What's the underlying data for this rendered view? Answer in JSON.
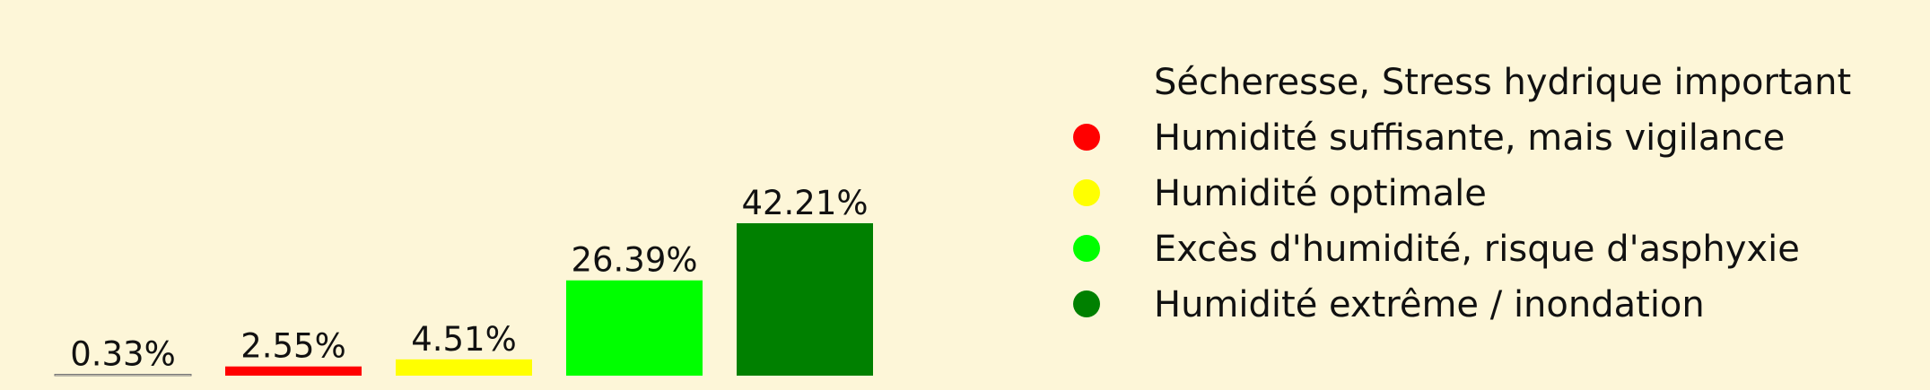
{
  "chart_data": {
    "type": "bar",
    "categories": [
      "Sécheresse, Stress hydrique important",
      "Humidité suffisante, mais vigilance",
      "Humidité optimale",
      "Excès d'humidité, risque d'asphyxie",
      "Humidité extrême / inondation"
    ],
    "values": [
      0.33,
      2.55,
      4.51,
      26.39,
      42.21
    ],
    "value_labels": [
      "0.33%",
      "2.55%",
      "4.51%",
      "26.39%",
      "42.21%"
    ],
    "colors": [
      "#fdf6d8",
      "#ff0000",
      "#ffff00",
      "#00ff00",
      "#008000"
    ],
    "legend": {
      "position": "right",
      "entries": [
        "Sécheresse, Stress hydrique important",
        "Humidité suffisante, mais vigilance",
        "Humidité optimale",
        "Excès d'humidité, risque d'asphyxie",
        "Humidité extrême / inondation"
      ]
    },
    "grid": false,
    "ylim": [
      0,
      42.21
    ]
  }
}
